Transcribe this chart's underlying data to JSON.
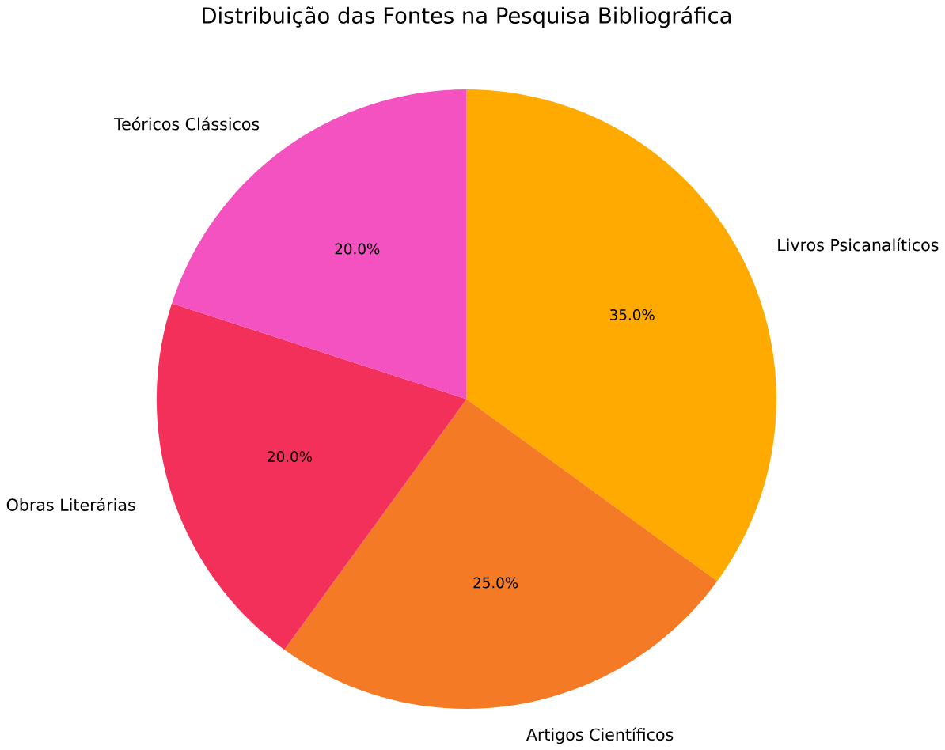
{
  "chart_data": {
    "type": "pie",
    "title": "Distribuição das Fontes na Pesquisa Bibliográfica",
    "categories": [
      "Livros Psicanalíticos",
      "Artigos Científicos",
      "Obras Literárias",
      "Teóricos Clássicos"
    ],
    "values": [
      35,
      25,
      20,
      20
    ],
    "colors": [
      "#ffaa00",
      "#f57a25",
      "#f2305a",
      "#f452c0"
    ],
    "value_labels": [
      "35.0%",
      "25.0%",
      "20.0%",
      "20.0%"
    ]
  }
}
